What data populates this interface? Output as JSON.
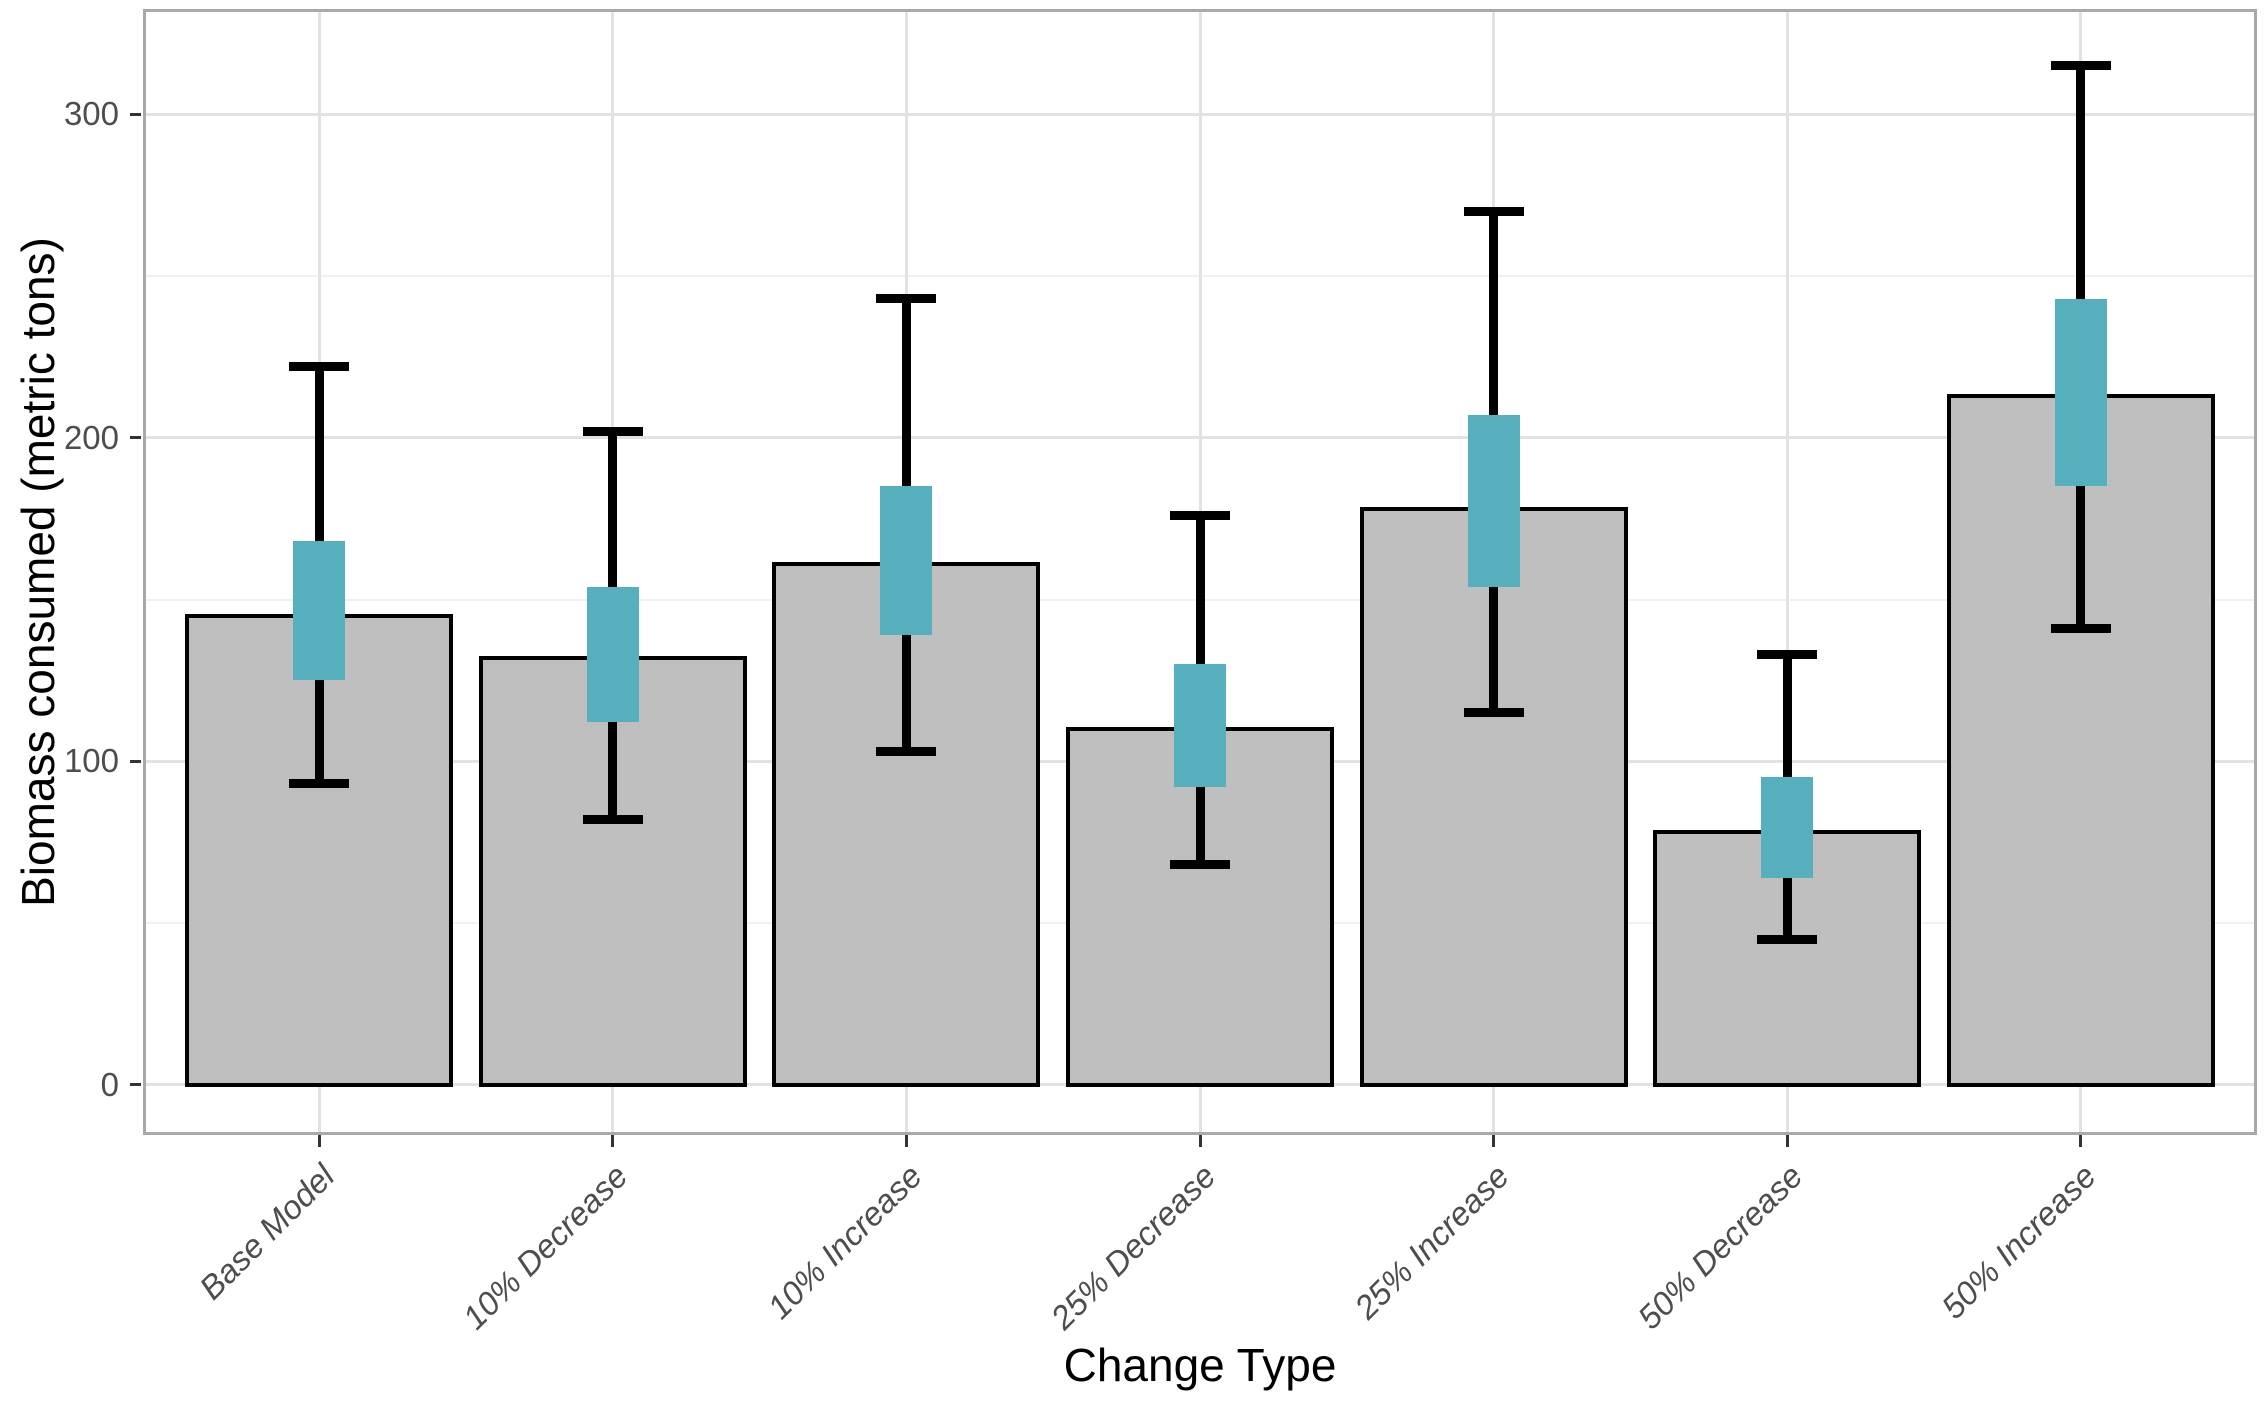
{
  "chart_data": {
    "type": "bar",
    "title": "",
    "xlabel": "Change Type",
    "ylabel": "Biomass consumed (metric tons)",
    "categories": [
      "Base Model",
      "10% Decrease",
      "10% Increase",
      "25% Decrease",
      "25% Increase",
      "50% Decrease",
      "50% Increase"
    ],
    "series": [
      {
        "name": "Biomass consumed (bar height, metric tons)",
        "values": [
          145,
          132,
          161,
          110,
          178,
          78,
          213
        ]
      },
      {
        "name": "Error bar lower end",
        "values": [
          93,
          82,
          103,
          68,
          115,
          45,
          141
        ]
      },
      {
        "name": "Error bar upper end",
        "values": [
          222,
          202,
          243,
          176,
          270,
          133,
          315
        ]
      },
      {
        "name": "Teal box lower edge",
        "values": [
          125,
          112,
          139,
          92,
          154,
          64,
          185
        ]
      },
      {
        "name": "Teal box upper edge",
        "values": [
          168,
          154,
          185,
          130,
          207,
          95,
          243
        ]
      }
    ],
    "y_ticks": [
      0,
      100,
      200,
      300
    ],
    "y_minor_gridlines": [
      50,
      150,
      250
    ],
    "ylim": [
      -15.5,
      332.5
    ],
    "grid": "horizontal major+minor, vertical major at each category",
    "legend": "none",
    "colors": {
      "bar_fill": "#bebebe",
      "bar_stroke": "#000000",
      "error_bar": "#000000",
      "box_fill": "#55afbc",
      "grid_major": "#e2e2e2",
      "grid_minor": "#f0f0f0",
      "panel_border": "#a9a9a9",
      "tick_mark": "#333333",
      "tick_label": "#4d4d4d",
      "axis_title": "#000000"
    }
  }
}
